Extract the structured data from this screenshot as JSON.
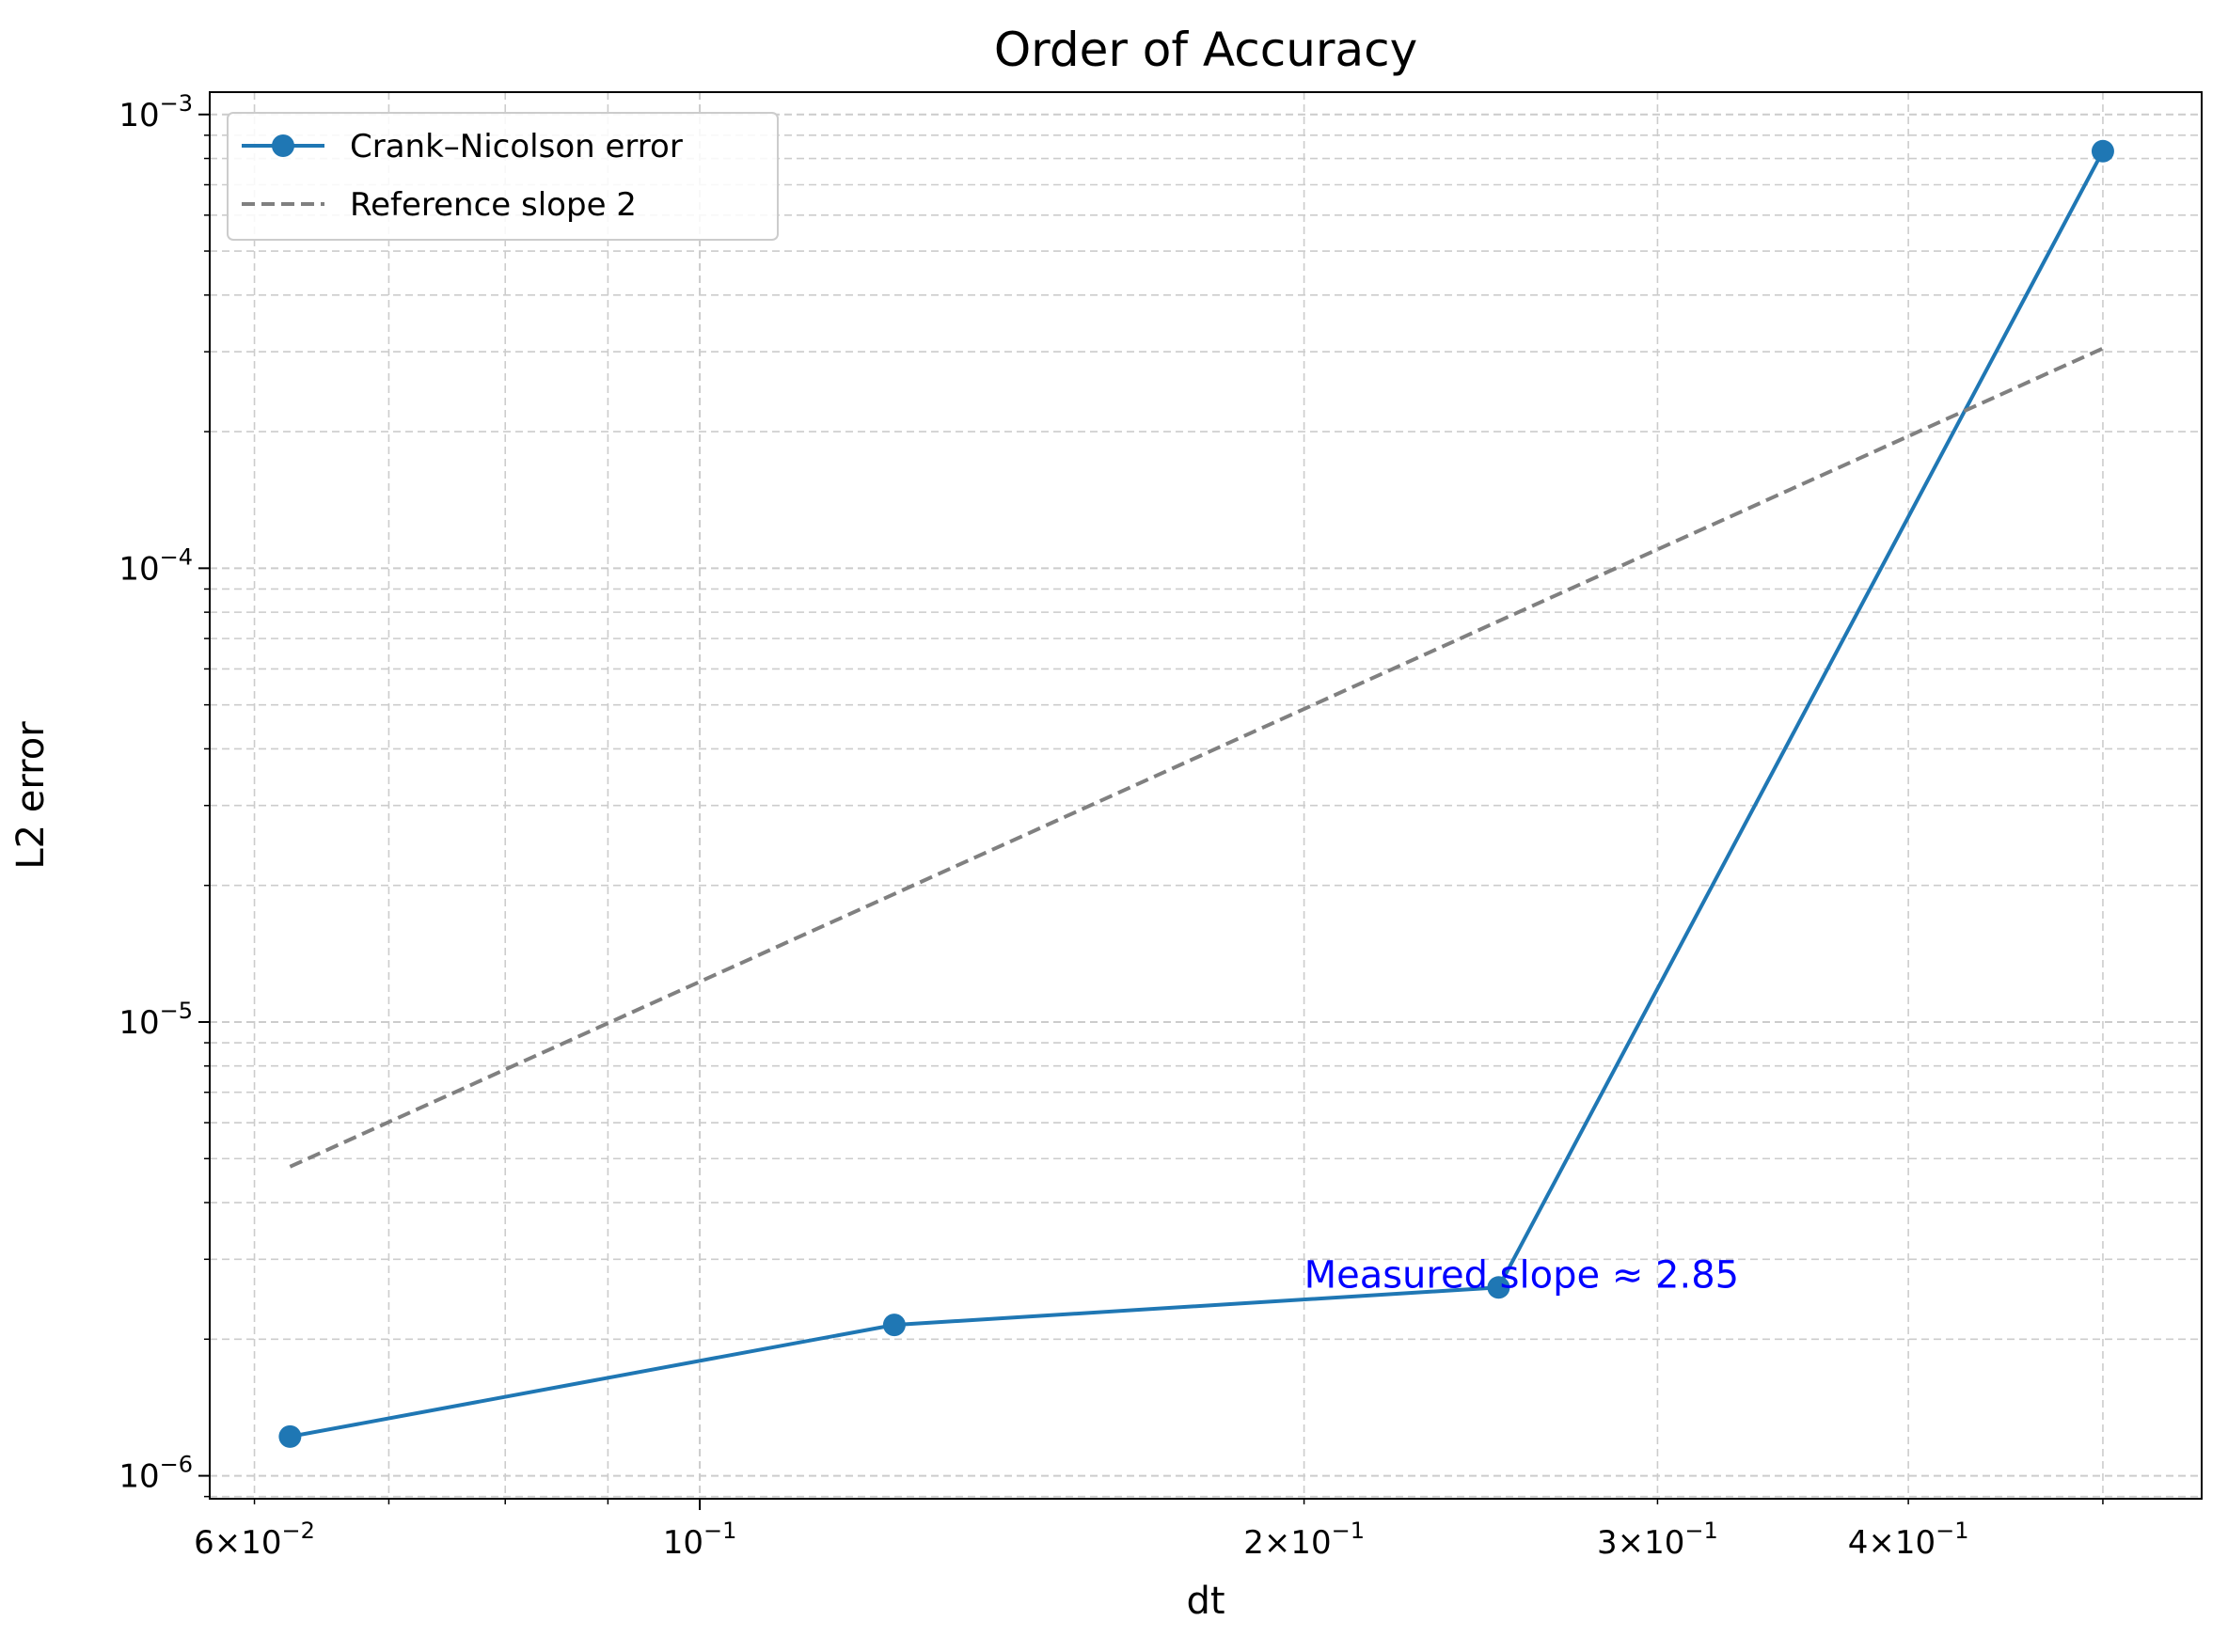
{
  "chart_data": {
    "type": "line",
    "title": "Order of Accuracy",
    "xlabel": "dt",
    "ylabel": "L2 error",
    "xscale": "log",
    "yscale": "log",
    "xlim": [
      0.057,
      0.56
    ],
    "ylim": [
      8.9e-07,
      0.00112
    ],
    "grid": true,
    "legend_position": "top-left",
    "x_ticks": [
      {
        "value": 0.06,
        "base": "6×10",
        "exp": "−2"
      },
      {
        "value": 0.1,
        "base": "10",
        "exp": "−1"
      },
      {
        "value": 0.2,
        "base": "2×10",
        "exp": "−1"
      },
      {
        "value": 0.3,
        "base": "3×10",
        "exp": "−1"
      },
      {
        "value": 0.4,
        "base": "4×10",
        "exp": "−1"
      }
    ],
    "y_ticks": [
      {
        "value": 1e-06,
        "base": "10",
        "exp": "−6"
      },
      {
        "value": 1e-05,
        "base": "10",
        "exp": "−5"
      },
      {
        "value": 0.0001,
        "base": "10",
        "exp": "−4"
      },
      {
        "value": 0.001,
        "base": "10",
        "exp": "−3"
      }
    ],
    "series": [
      {
        "name": "Crank–Nicolson error",
        "style": "solid-marker",
        "color": "#1f77b4",
        "x": [
          0.0625,
          0.125,
          0.25,
          0.5
        ],
        "y": [
          1.22e-06,
          2.15e-06,
          2.6e-06,
          0.00083
        ]
      },
      {
        "name": "Reference slope 2",
        "style": "dashed",
        "color": "#808080",
        "x": [
          0.0625,
          0.5
        ],
        "y": [
          4.8e-06,
          0.000305
        ]
      }
    ],
    "annotations": [
      {
        "text": "Measured slope ≈ 2.85",
        "x": 0.2,
        "y": 2.6e-06,
        "color": "#0000ff"
      }
    ]
  }
}
